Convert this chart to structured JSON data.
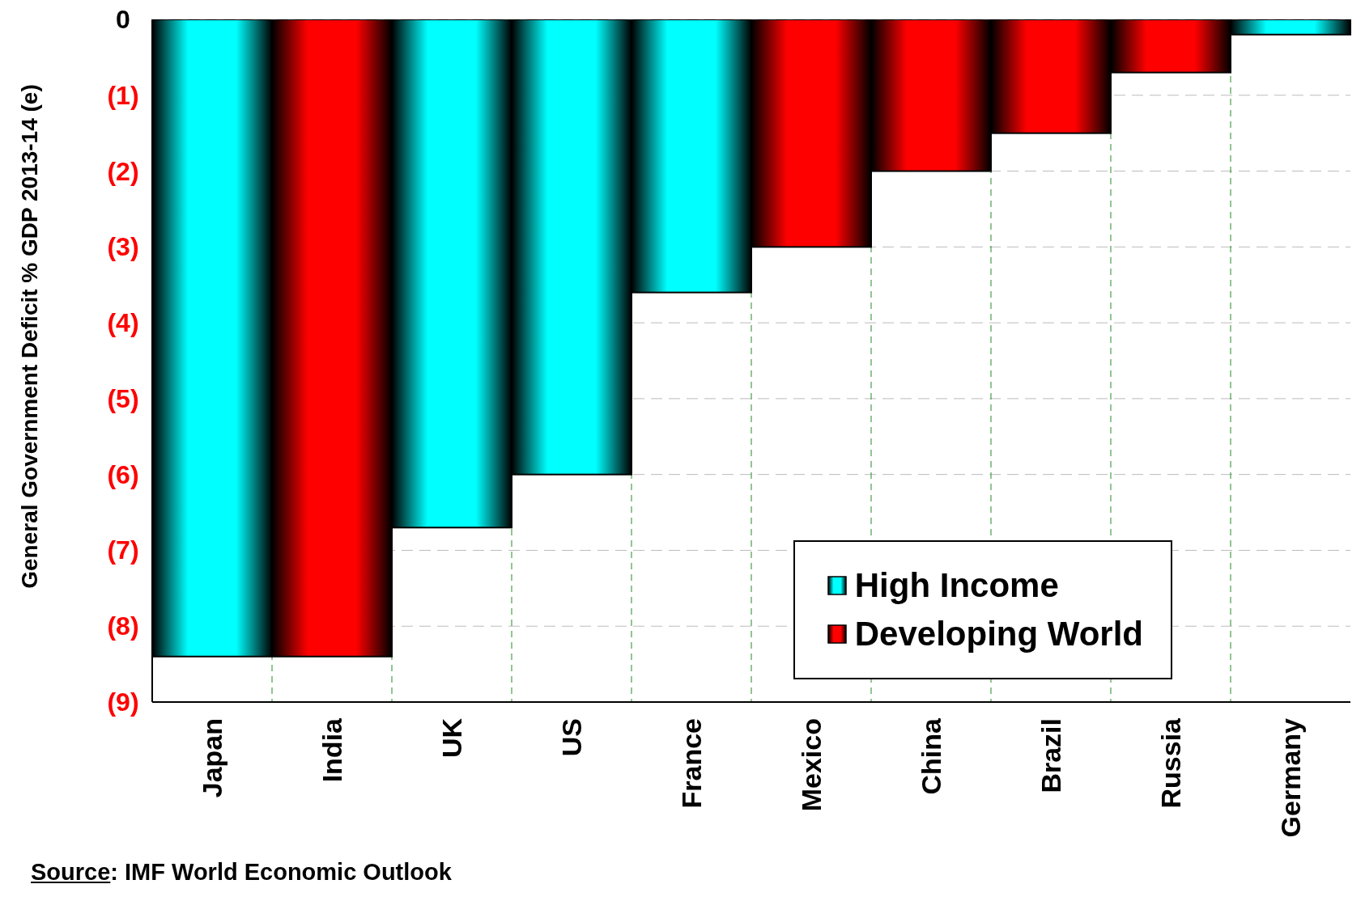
{
  "chart_data": {
    "type": "bar",
    "ylabel": "General Government Deficit  % GDP  2013-14 (e)",
    "categories": [
      "Japan",
      "India",
      "UK",
      "US",
      "France",
      "Mexico",
      "China",
      "Brazil",
      "Russia",
      "Germany"
    ],
    "series": [
      {
        "name": "High Income",
        "color": "#00ffff",
        "values": [
          -8.4,
          null,
          -6.7,
          -6.0,
          -3.6,
          null,
          null,
          null,
          null,
          -0.2
        ]
      },
      {
        "name": "Developing World",
        "color": "#ff0000",
        "values": [
          null,
          -8.4,
          null,
          null,
          null,
          -3.0,
          -2.0,
          -1.5,
          -0.7,
          null
        ]
      }
    ],
    "stacked": true,
    "ylim": [
      -9,
      0
    ],
    "yticks": [
      0,
      {
        "value": -1,
        "label": "(1)"
      },
      {
        "value": -2,
        "label": "(2)"
      },
      {
        "value": -3,
        "label": "(3)"
      },
      {
        "value": -4,
        "label": "(4)"
      },
      {
        "value": -5,
        "label": "(5)"
      },
      {
        "value": -6,
        "label": "(6)"
      },
      {
        "value": -7,
        "label": "(7)"
      },
      {
        "value": -8,
        "label": "(8)"
      },
      {
        "value": -9,
        "label": "(9)"
      }
    ],
    "grid": true,
    "legend": "bottom right",
    "annotations": [
      "Source: IMF World Economic Outlook"
    ]
  }
}
